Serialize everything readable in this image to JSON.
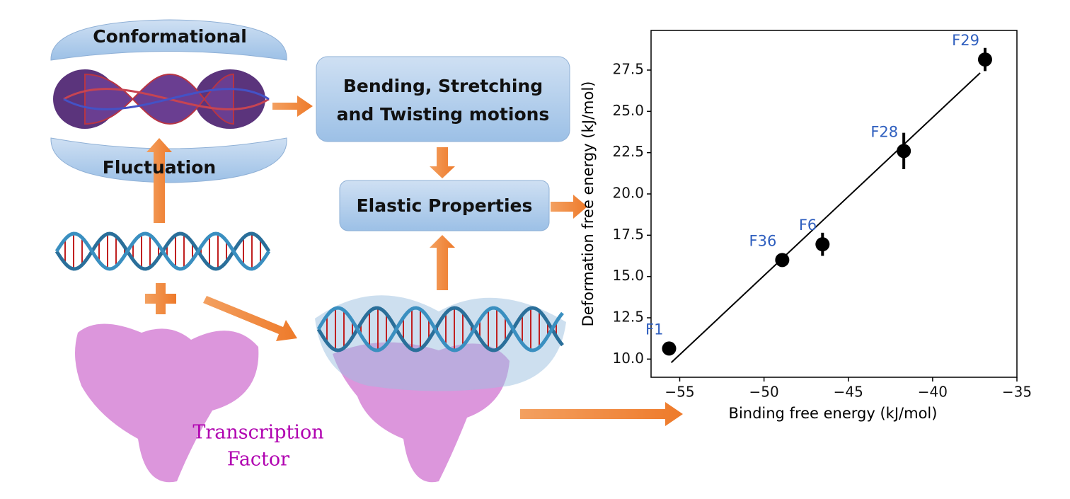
{
  "labels": {
    "conformational": "Conformational",
    "fluctuation": "Fluctuation",
    "motions": [
      "Bending, Stretching",
      "and Twisting motions"
    ],
    "elastic": "Elastic Properties",
    "transcription_factor": [
      "Transcription",
      "Factor"
    ]
  },
  "chart_data": {
    "type": "scatter",
    "x_label": "Binding free energy (kJ/mol)",
    "y_label": "Deformation free energy (kJ/mol)",
    "point_labels": [
      "F1",
      "F36",
      "F6",
      "F28",
      "F29"
    ],
    "x": [
      -55.63,
      -48.92,
      -46.53,
      -41.71,
      -36.89
    ],
    "values": [
      10.64,
      16.0,
      16.95,
      22.6,
      28.14
    ],
    "errors": [
      0.3,
      0.25,
      0.7,
      1.1,
      0.7
    ],
    "color": "#000000",
    "label_color": "#2f5fbf",
    "fit_line": {
      "x": [
        -55.5,
        -37.18
      ],
      "y": [
        9.79,
        27.33
      ]
    },
    "xlim": [
      -56.7,
      -35
    ],
    "ylim": [
      8.9,
      29.9
    ],
    "xticks": [
      {
        "value": -55,
        "label": "−55"
      },
      {
        "value": -50,
        "label": "−50"
      },
      {
        "value": -45,
        "label": "−45"
      },
      {
        "value": -40,
        "label": "−40"
      },
      {
        "value": -35,
        "label": "−35"
      }
    ],
    "yticks": [
      {
        "value": 10,
        "label": "10.0"
      },
      12.5,
      {
        "value": 15,
        "label": "15.0"
      },
      17.5,
      {
        "value": 20,
        "label": "20.0"
      },
      22.5,
      {
        "value": 25,
        "label": "25.0"
      },
      27.5
    ]
  }
}
